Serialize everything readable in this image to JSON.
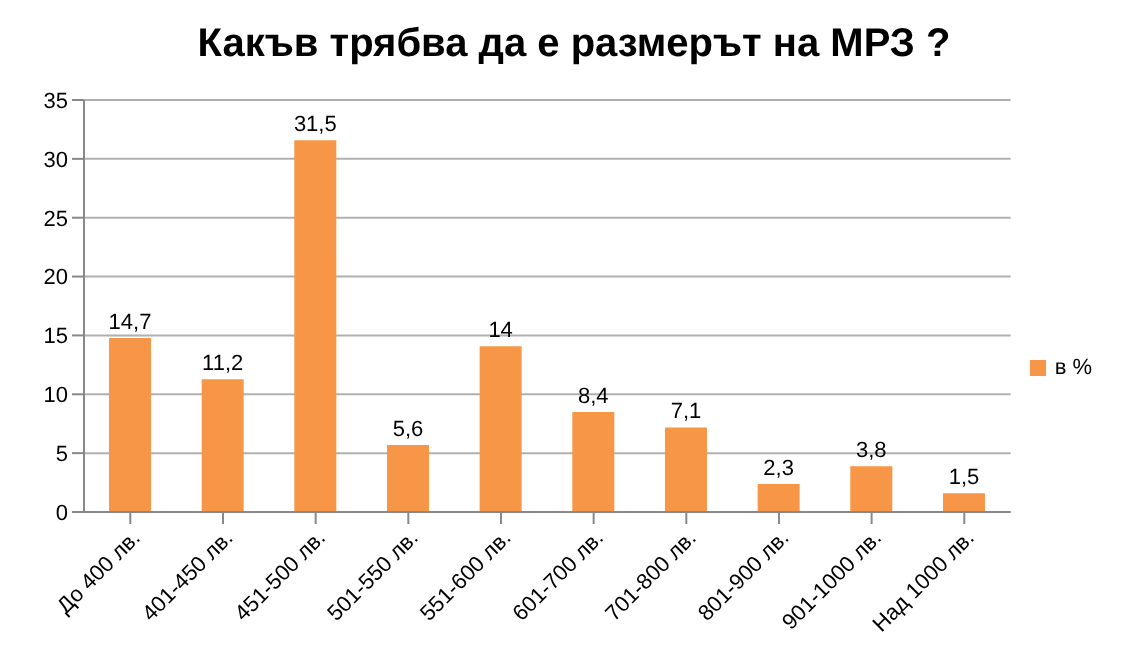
{
  "chart_data": {
    "type": "bar",
    "title": "Какъв трябва да е размерът на МРЗ ?",
    "categories": [
      "До 400 лв.",
      "401-450 лв.",
      "451-500 лв.",
      "501-550 лв.",
      "551-600 лв.",
      "601-700 лв.",
      "701-800 лв.",
      "801-900 лв.",
      "901-1000 лв.",
      "Над 1000 лв."
    ],
    "series": [
      {
        "name": "в %",
        "color": "#f79646",
        "values": [
          14.7,
          11.2,
          31.5,
          5.6,
          14,
          8.4,
          7.1,
          2.3,
          3.8,
          1.5
        ],
        "value_labels": [
          "14,7",
          "11,2",
          "31,5",
          "5,6",
          "14",
          "8,4",
          "7,1",
          "2,3",
          "3,8",
          "1,5"
        ]
      }
    ],
    "ylim": [
      0,
      35
    ],
    "yticks": [
      0,
      5,
      10,
      15,
      20,
      25,
      30,
      35
    ],
    "grid": "y",
    "legend": "right"
  }
}
